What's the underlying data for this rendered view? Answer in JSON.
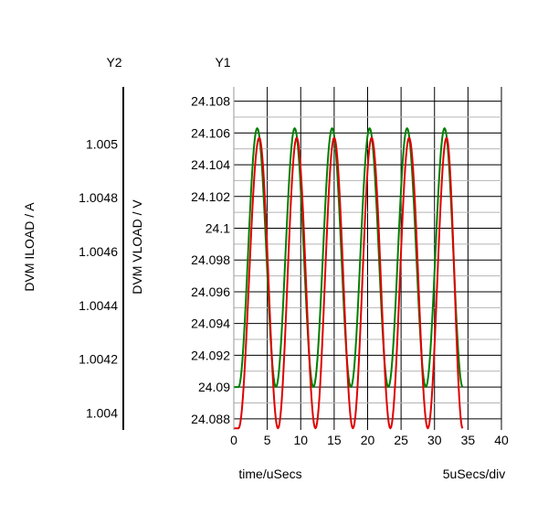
{
  "chart_data": {
    "type": "line",
    "xlabel": "time/uSecs",
    "xscale_label": "5uSecs/div",
    "x_ticks": [
      0,
      5,
      10,
      15,
      20,
      25,
      30,
      35,
      40
    ],
    "xlim": [
      0,
      40
    ],
    "y1": {
      "axis_name": "Y1",
      "label": "DVM VLOAD / V",
      "ticks": [
        "24.088",
        "24.09",
        "24.092",
        "24.094",
        "24.096",
        "24.098",
        "24.1",
        "24.102",
        "24.104",
        "24.106",
        "24.108"
      ],
      "ylim": [
        24.0873,
        24.1089
      ]
    },
    "y2": {
      "axis_name": "Y2",
      "label": "DVM ILOAD / A",
      "ticks": [
        "1.004",
        "1.0042",
        "1.0044",
        "1.0046",
        "1.0048",
        "1.005"
      ],
      "ylim": [
        1.003937,
        1.005212
      ]
    },
    "series": [
      {
        "axis": "y1",
        "color": "#007f00",
        "period": 5.6,
        "x_start": 0,
        "x_end": 34.2,
        "min": 24.09,
        "max": 24.1063,
        "points": [
          [
            0,
            24.09
          ],
          [
            0.7,
            24.09
          ],
          [
            3.5,
            24.1063
          ],
          [
            6.3,
            24.09
          ],
          [
            9.1,
            24.1063
          ],
          [
            11.9,
            24.09
          ],
          [
            14.7,
            24.1063
          ],
          [
            17.5,
            24.09
          ],
          [
            20.3,
            24.1063
          ],
          [
            23.1,
            24.09
          ],
          [
            25.9,
            24.1063
          ],
          [
            28.7,
            24.09
          ],
          [
            31.5,
            24.1063
          ],
          [
            34.2,
            24.09
          ]
        ]
      },
      {
        "axis": "y1",
        "color": "#e00000",
        "period": 5.6,
        "x_start": 0,
        "x_end": 34.2,
        "min": 24.0874,
        "max": 24.1057,
        "points": [
          [
            0,
            24.0874
          ],
          [
            0.7,
            24.0874
          ],
          [
            3.8,
            24.1057
          ],
          [
            6.6,
            24.0874
          ],
          [
            9.4,
            24.1057
          ],
          [
            12.2,
            24.0874
          ],
          [
            15.0,
            24.1057
          ],
          [
            17.8,
            24.0874
          ],
          [
            20.6,
            24.1057
          ],
          [
            23.4,
            24.0874
          ],
          [
            26.2,
            24.1057
          ],
          [
            29.0,
            24.0874
          ],
          [
            31.8,
            24.1057
          ],
          [
            34.2,
            24.0874
          ]
        ]
      }
    ],
    "grid": true
  }
}
